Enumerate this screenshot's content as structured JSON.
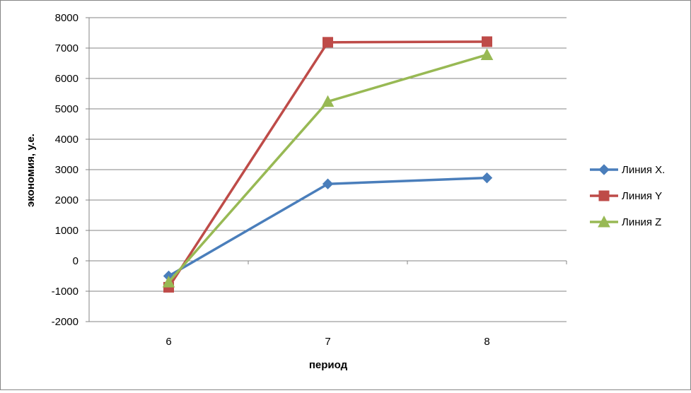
{
  "chart_data": {
    "type": "line",
    "title": "",
    "xlabel": "период",
    "ylabel": "экономия, у.е.",
    "categories": [
      "6",
      "7",
      "8"
    ],
    "ylim": [
      -2000,
      8000
    ],
    "yticks": [
      8000,
      7000,
      6000,
      5000,
      4000,
      3000,
      2000,
      1000,
      0,
      -1000,
      -2000
    ],
    "grid": "horizontal",
    "legend_position": "right",
    "series": [
      {
        "name": "Линия Х.",
        "values": [
          -500,
          2530,
          2730
        ],
        "color": "#4a7ebb",
        "marker": "diamond"
      },
      {
        "name": "Линия Y",
        "values": [
          -870,
          7190,
          7210
        ],
        "color": "#be4b48",
        "marker": "square"
      },
      {
        "name": "Линия Z",
        "values": [
          -700,
          5240,
          6780
        ],
        "color": "#98b954",
        "marker": "triangle"
      }
    ]
  }
}
